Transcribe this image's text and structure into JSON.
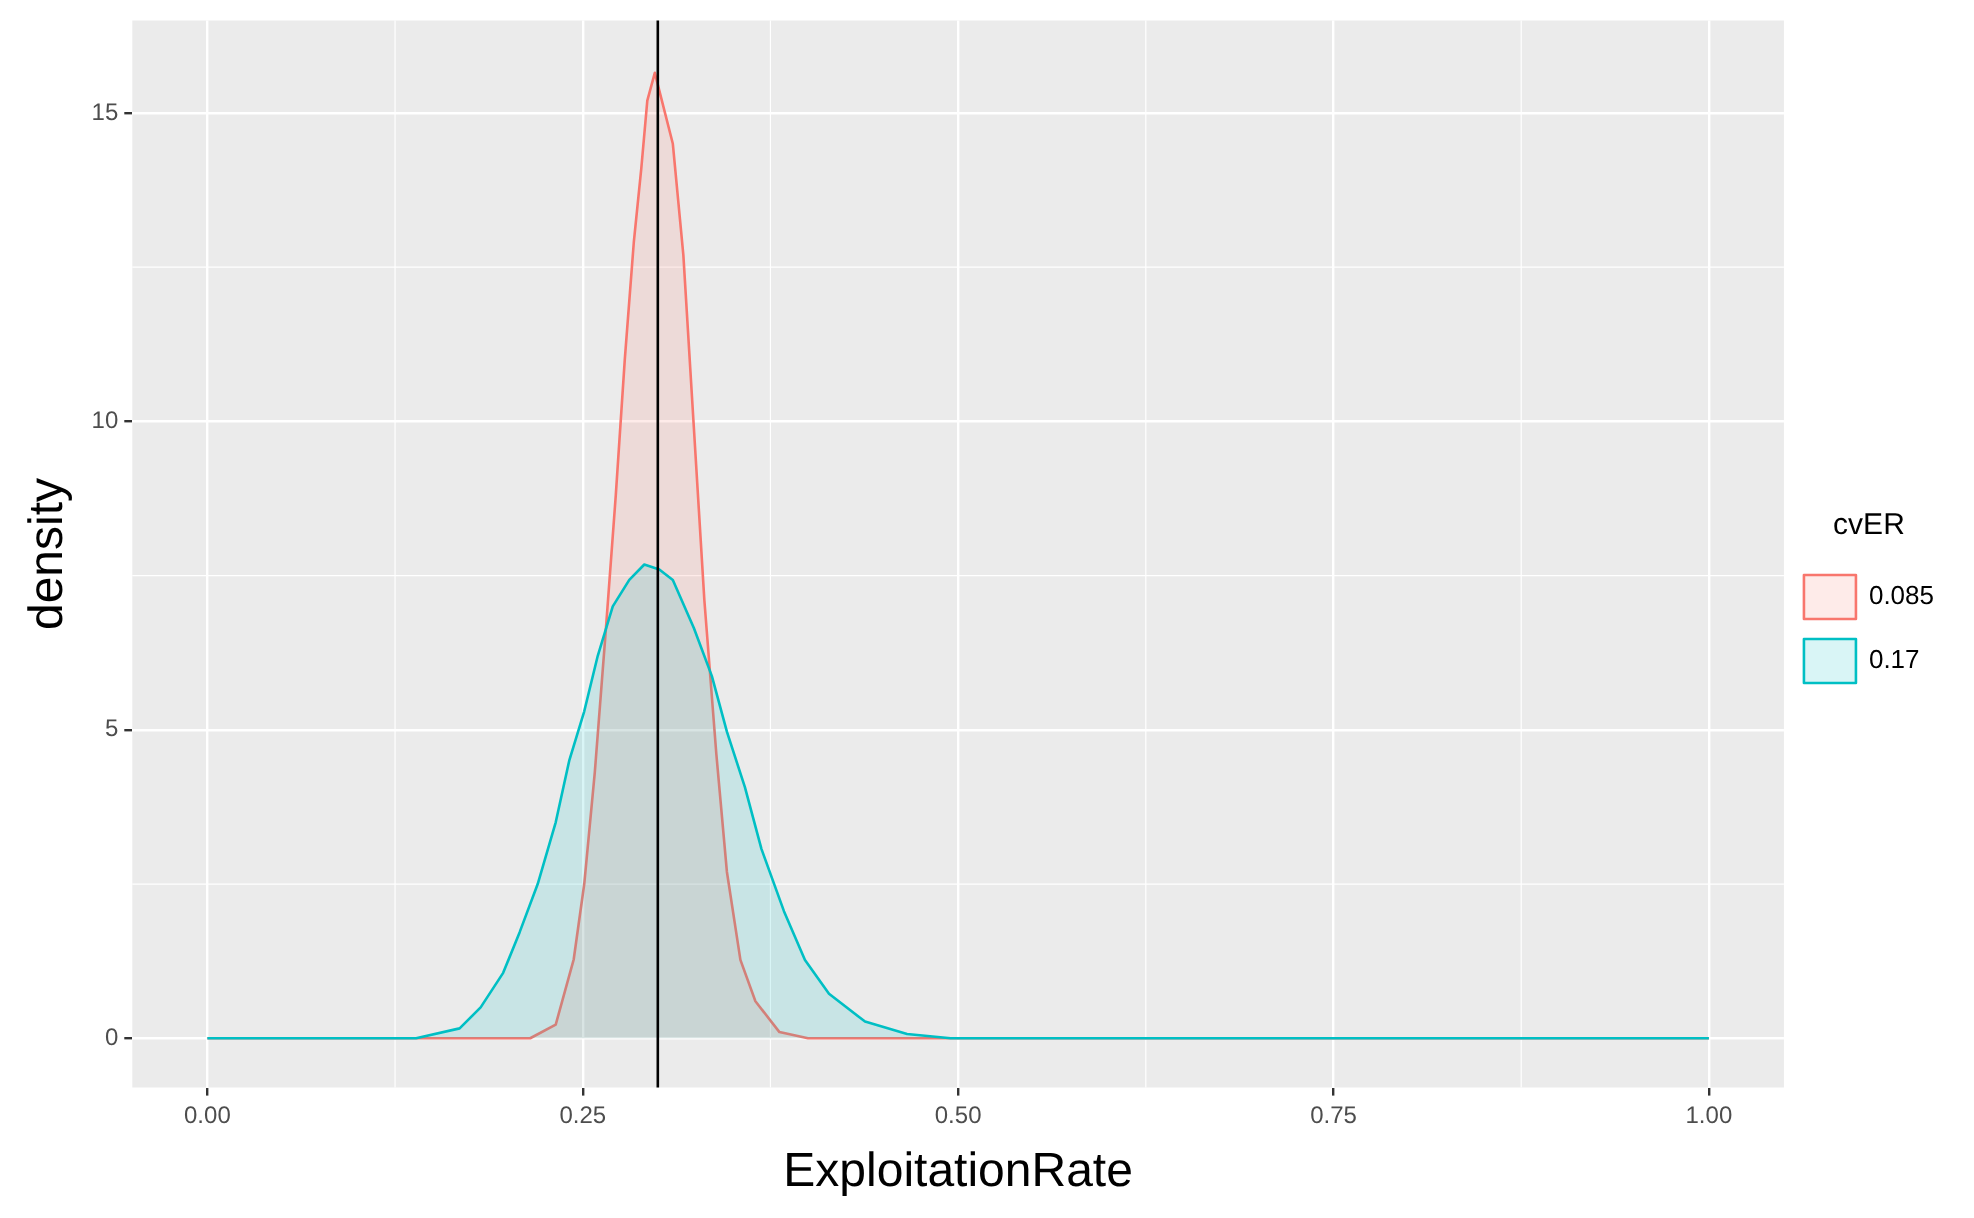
{
  "chart_data": {
    "type": "area",
    "xlabel": "ExploitationRate",
    "ylabel": "density",
    "legend_title": "cvER",
    "legend": "right",
    "grid": true,
    "xlim": [
      -0.05,
      1.05
    ],
    "xticks": [
      {
        "value": 0,
        "label": "0.00"
      },
      {
        "value": 0.25,
        "label": "0.25"
      },
      {
        "value": 0.5,
        "label": "0.50"
      },
      {
        "value": 0.75,
        "label": "0.75"
      },
      {
        "value": 1,
        "label": "1.00"
      }
    ],
    "ylim": [
      -0.8,
      16.5
    ],
    "yticks": [
      0,
      5,
      10,
      15
    ],
    "ref_lines": [
      {
        "axis": "x",
        "value": 0.3,
        "color": "#000000"
      }
    ],
    "series": [
      {
        "name": "0.085",
        "color": "#f8766d",
        "x": [
          0,
          0.215,
          0.232,
          0.244,
          0.251,
          0.258,
          0.265,
          0.272,
          0.278,
          0.284,
          0.289,
          0.293,
          0.298,
          0.31,
          0.317,
          0.324,
          0.331,
          0.339,
          0.346,
          0.355,
          0.365,
          0.381,
          0.4,
          1
        ],
        "values": [
          0,
          0,
          0.22,
          1.28,
          2.5,
          4.3,
          6.5,
          8.8,
          11.0,
          12.9,
          14.1,
          15.2,
          15.65,
          14.5,
          12.7,
          9.9,
          7.1,
          4.6,
          2.7,
          1.27,
          0.6,
          0.1,
          0,
          0
        ]
      },
      {
        "name": "0.17",
        "color": "#00bfc4",
        "x": [
          0,
          0.139,
          0.168,
          0.182,
          0.197,
          0.208,
          0.22,
          0.232,
          0.241,
          0.251,
          0.26,
          0.27,
          0.281,
          0.291,
          0.301,
          0.31,
          0.324,
          0.336,
          0.346,
          0.358,
          0.369,
          0.384,
          0.398,
          0.414,
          0.438,
          0.466,
          0.495,
          1
        ],
        "values": [
          0,
          0,
          0.16,
          0.5,
          1.06,
          1.72,
          2.5,
          3.5,
          4.5,
          5.3,
          6.2,
          7.0,
          7.43,
          7.68,
          7.6,
          7.43,
          6.65,
          5.87,
          4.97,
          4.07,
          3.07,
          2.06,
          1.27,
          0.72,
          0.27,
          0.07,
          0,
          0
        ]
      }
    ]
  }
}
